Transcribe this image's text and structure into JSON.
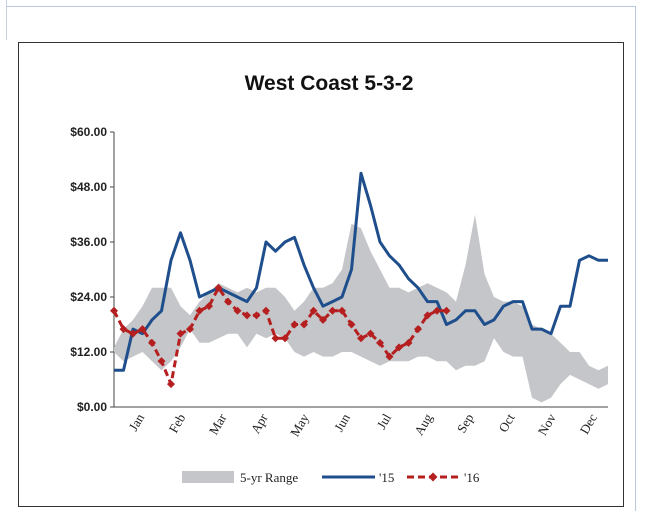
{
  "chart_data": {
    "type": "line",
    "title": "West Coast  5-3-2",
    "xlabel": "",
    "ylabel": "",
    "ylim": [
      0,
      60
    ],
    "yticks": [
      "$0.00",
      "$12.00",
      "$24.00",
      "$36.00",
      "$48.00",
      "$60.00"
    ],
    "ytick_values": [
      0,
      12,
      24,
      36,
      48,
      60
    ],
    "months": [
      "Jan",
      "Feb",
      "Mar",
      "Apr",
      "May",
      "Jun",
      "Jul",
      "Aug",
      "Sep",
      "Oct",
      "Nov",
      "Dec"
    ],
    "x_unit": "week",
    "xlim": [
      0,
      52
    ],
    "legend": {
      "position": "bottom",
      "items": [
        "5-yr Range",
        "'15",
        "'16"
      ]
    },
    "series": [
      {
        "name": "5-yr Range",
        "kind": "band",
        "x": [
          0,
          1,
          2,
          3,
          4,
          5,
          6,
          7,
          8,
          9,
          10,
          11,
          12,
          13,
          14,
          15,
          16,
          17,
          18,
          19,
          20,
          21,
          22,
          23,
          24,
          25,
          26,
          27,
          28,
          29,
          30,
          31,
          32,
          33,
          34,
          35,
          36,
          37,
          38,
          39,
          40,
          41,
          42,
          43,
          44,
          45,
          46,
          47,
          48,
          49,
          50,
          51,
          52
        ],
        "upper": [
          13,
          17,
          19,
          22,
          26,
          26,
          26,
          22,
          20,
          23,
          25,
          27,
          26,
          25,
          26,
          25,
          26,
          26,
          24,
          21,
          23,
          26,
          26,
          27,
          30,
          40,
          39,
          34,
          30,
          26,
          26,
          25,
          26,
          27,
          26,
          25,
          23,
          31,
          42,
          29,
          24,
          23,
          23,
          22,
          18,
          17,
          16,
          14,
          12,
          12,
          9,
          8,
          9
        ],
        "lower": [
          12,
          10,
          11,
          12,
          10,
          8,
          10,
          13,
          17,
          14,
          14,
          15,
          16,
          16,
          13,
          16,
          15,
          16,
          15,
          12,
          11,
          12,
          11,
          11,
          12,
          12,
          11,
          10,
          9,
          10,
          10,
          10,
          11,
          11,
          10,
          10,
          8,
          9,
          9,
          10,
          15,
          12,
          11,
          11,
          2,
          1,
          2,
          5,
          7,
          6,
          5,
          4,
          5
        ]
      },
      {
        "name": "'15",
        "kind": "line",
        "color": "#1f4e8c",
        "x": [
          0,
          1,
          2,
          3,
          4,
          5,
          6,
          7,
          8,
          9,
          10,
          11,
          12,
          13,
          14,
          15,
          16,
          17,
          18,
          19,
          20,
          21,
          22,
          23,
          24,
          25,
          26,
          27,
          28,
          29,
          30,
          31,
          32,
          33,
          34,
          35,
          36,
          37,
          38,
          39,
          40,
          41,
          42,
          43,
          44,
          45,
          46,
          47,
          48,
          49,
          50,
          51,
          52
        ],
        "values": [
          8,
          8,
          17,
          16,
          19,
          21,
          32,
          38,
          32,
          24,
          25,
          26,
          25,
          24,
          23,
          26,
          36,
          34,
          36,
          37,
          31,
          26,
          22,
          23,
          24,
          30,
          51,
          44,
          36,
          33,
          31,
          28,
          26,
          23,
          23,
          18,
          19,
          21,
          21,
          18,
          19,
          22,
          23,
          23,
          17,
          17,
          16,
          22,
          22,
          32,
          33,
          32,
          32
        ]
      },
      {
        "name": "'16",
        "kind": "line",
        "style": "dashed-markers",
        "color": "#b51f1f",
        "x": [
          0,
          1,
          2,
          3,
          4,
          5,
          6,
          7,
          8,
          9,
          10,
          11,
          12,
          13,
          14,
          15,
          16,
          17,
          18,
          19,
          20,
          21,
          22,
          23,
          24,
          25,
          26,
          27,
          28,
          29,
          30,
          31,
          32,
          33,
          34,
          35
        ],
        "values": [
          21,
          17,
          16,
          17,
          14,
          10,
          5,
          16,
          17,
          21,
          22,
          26,
          23,
          21,
          20,
          20,
          21,
          15,
          15,
          18,
          18,
          21,
          19,
          21,
          21,
          18,
          15,
          16,
          14,
          11,
          13,
          14,
          17,
          20,
          21,
          21
        ]
      }
    ]
  }
}
